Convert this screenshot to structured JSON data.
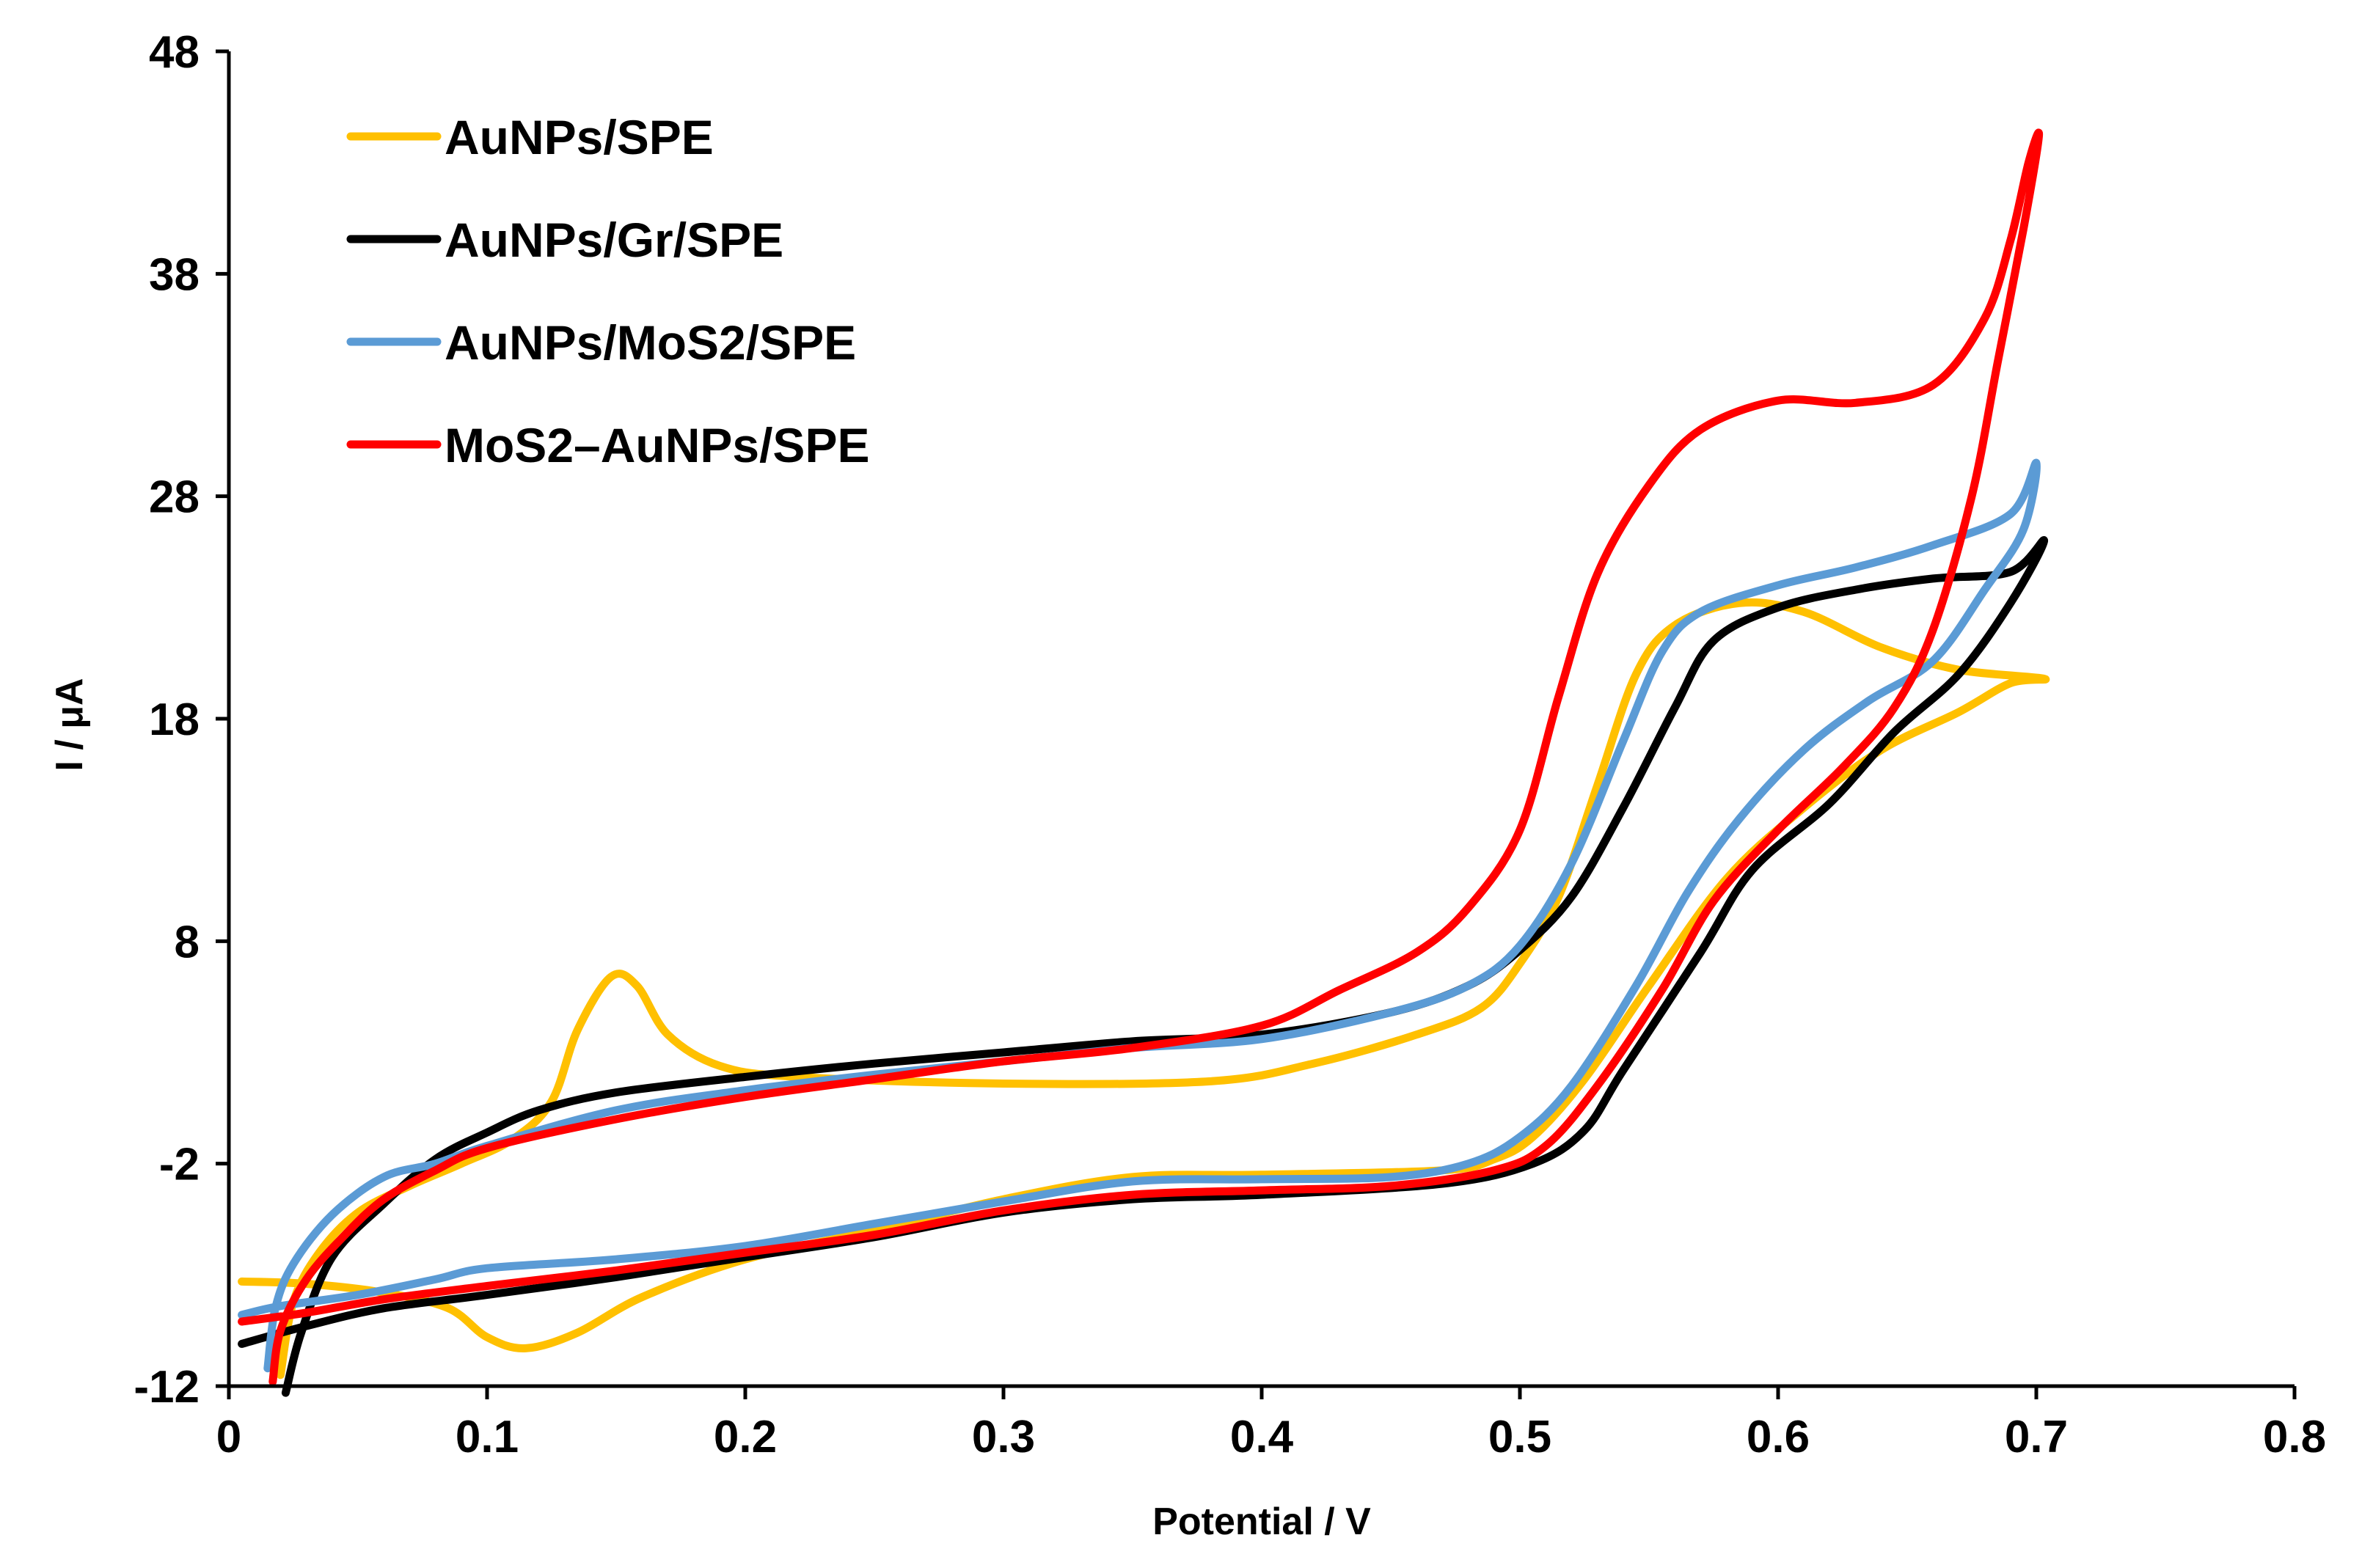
{
  "chart_data": {
    "type": "line",
    "title": "",
    "xlabel": "Potential / V",
    "ylabel": "I / μA",
    "xlim": [
      0,
      0.8
    ],
    "ylim": [
      -12,
      48
    ],
    "x_ticks": [
      0,
      0.1,
      0.2,
      0.3,
      0.4,
      0.5,
      0.6,
      0.7,
      0.8
    ],
    "x_tick_labels": [
      "0",
      "0.1",
      "0.2",
      "0.3",
      "0.4",
      "0.5",
      "0.6",
      "0.7",
      "0.8"
    ],
    "y_ticks": [
      -12,
      -2,
      8,
      18,
      28,
      38,
      48
    ],
    "y_tick_labels": [
      "-12",
      "-2",
      "8",
      "18",
      "28",
      "38",
      "48"
    ],
    "legend_position": "top-left",
    "series": [
      {
        "name": "AuNPs/SPE",
        "color": "#FFC000",
        "points": [
          [
            0.02,
            -11.5
          ],
          [
            0.025,
            -8.2
          ],
          [
            0.035,
            -6
          ],
          [
            0.05,
            -4.2
          ],
          [
            0.07,
            -3
          ],
          [
            0.09,
            -2
          ],
          [
            0.11,
            -0.9
          ],
          [
            0.125,
            0.8
          ],
          [
            0.135,
            4
          ],
          [
            0.148,
            6.4
          ],
          [
            0.158,
            6
          ],
          [
            0.17,
            3.8
          ],
          [
            0.19,
            2.4
          ],
          [
            0.22,
            1.9
          ],
          [
            0.3,
            1.6
          ],
          [
            0.38,
            1.7
          ],
          [
            0.42,
            2.5
          ],
          [
            0.46,
            3.8
          ],
          [
            0.485,
            5
          ],
          [
            0.5,
            7
          ],
          [
            0.515,
            10
          ],
          [
            0.53,
            15
          ],
          [
            0.545,
            20
          ],
          [
            0.56,
            22.2
          ],
          [
            0.585,
            23.2
          ],
          [
            0.61,
            22.8
          ],
          [
            0.64,
            21.2
          ],
          [
            0.67,
            20.2
          ],
          [
            0.703,
            19.8
          ],
          [
            0.69,
            19.6
          ],
          [
            0.67,
            18.3
          ],
          [
            0.64,
            16.6
          ],
          [
            0.61,
            14
          ],
          [
            0.58,
            10.8
          ],
          [
            0.55,
            6
          ],
          [
            0.525,
            1.8
          ],
          [
            0.505,
            -0.8
          ],
          [
            0.49,
            -1.8
          ],
          [
            0.47,
            -2.3
          ],
          [
            0.4,
            -2.5
          ],
          [
            0.35,
            -2.6
          ],
          [
            0.3,
            -3.6
          ],
          [
            0.25,
            -5
          ],
          [
            0.2,
            -6.3
          ],
          [
            0.16,
            -8
          ],
          [
            0.135,
            -9.6
          ],
          [
            0.115,
            -10.3
          ],
          [
            0.1,
            -9.8
          ],
          [
            0.085,
            -8.5
          ],
          [
            0.06,
            -7.8
          ],
          [
            0.03,
            -7.4
          ],
          [
            0.005,
            -7.3
          ]
        ]
      },
      {
        "name": "AuNPs/Gr/SPE",
        "color": "#000000",
        "points": [
          [
            0.022,
            -12.3
          ],
          [
            0.028,
            -9.6
          ],
          [
            0.04,
            -6.2
          ],
          [
            0.06,
            -3.8
          ],
          [
            0.08,
            -1.8
          ],
          [
            0.1,
            -0.6
          ],
          [
            0.12,
            0.4
          ],
          [
            0.15,
            1.2
          ],
          [
            0.2,
            1.9
          ],
          [
            0.25,
            2.5
          ],
          [
            0.3,
            3
          ],
          [
            0.35,
            3.5
          ],
          [
            0.4,
            3.8
          ],
          [
            0.45,
            4.8
          ],
          [
            0.48,
            6
          ],
          [
            0.5,
            7.6
          ],
          [
            0.52,
            10
          ],
          [
            0.54,
            14
          ],
          [
            0.56,
            18.5
          ],
          [
            0.575,
            21.5
          ],
          [
            0.6,
            23
          ],
          [
            0.63,
            23.8
          ],
          [
            0.66,
            24.3
          ],
          [
            0.69,
            24.6
          ],
          [
            0.703,
            26
          ],
          [
            0.69,
            23.2
          ],
          [
            0.67,
            20
          ],
          [
            0.645,
            17.4
          ],
          [
            0.62,
            14.2
          ],
          [
            0.59,
            11.2
          ],
          [
            0.57,
            7.5
          ],
          [
            0.54,
            2.2
          ],
          [
            0.525,
            -0.5
          ],
          [
            0.505,
            -2
          ],
          [
            0.47,
            -2.9
          ],
          [
            0.4,
            -3.4
          ],
          [
            0.35,
            -3.6
          ],
          [
            0.3,
            -4.2
          ],
          [
            0.25,
            -5.3
          ],
          [
            0.2,
            -6.2
          ],
          [
            0.15,
            -7.1
          ],
          [
            0.1,
            -7.9
          ],
          [
            0.06,
            -8.5
          ],
          [
            0.03,
            -9.3
          ],
          [
            0.005,
            -10.1
          ]
        ]
      },
      {
        "name": "AuNPs/MoS2/SPE",
        "color": "#5B9BD5",
        "points": [
          [
            0.015,
            -11.2
          ],
          [
            0.018,
            -8.5
          ],
          [
            0.025,
            -6.5
          ],
          [
            0.04,
            -4.3
          ],
          [
            0.06,
            -2.6
          ],
          [
            0.08,
            -2
          ],
          [
            0.1,
            -1.2
          ],
          [
            0.15,
            0.4
          ],
          [
            0.2,
            1.3
          ],
          [
            0.25,
            2
          ],
          [
            0.3,
            2.6
          ],
          [
            0.35,
            3.2
          ],
          [
            0.4,
            3.6
          ],
          [
            0.45,
            4.8
          ],
          [
            0.48,
            6
          ],
          [
            0.5,
            7.8
          ],
          [
            0.52,
            11.5
          ],
          [
            0.54,
            17
          ],
          [
            0.555,
            21
          ],
          [
            0.57,
            22.8
          ],
          [
            0.6,
            24
          ],
          [
            0.63,
            24.8
          ],
          [
            0.66,
            25.8
          ],
          [
            0.69,
            27.2
          ],
          [
            0.7,
            29.5
          ],
          [
            0.695,
            26.5
          ],
          [
            0.68,
            23.8
          ],
          [
            0.66,
            20.6
          ],
          [
            0.635,
            18.8
          ],
          [
            0.61,
            16.6
          ],
          [
            0.585,
            13.5
          ],
          [
            0.565,
            10.2
          ],
          [
            0.545,
            6
          ],
          [
            0.52,
            1.5
          ],
          [
            0.5,
            -0.8
          ],
          [
            0.48,
            -2
          ],
          [
            0.45,
            -2.6
          ],
          [
            0.4,
            -2.7
          ],
          [
            0.35,
            -2.8
          ],
          [
            0.3,
            -3.7
          ],
          [
            0.25,
            -4.7
          ],
          [
            0.2,
            -5.7
          ],
          [
            0.15,
            -6.3
          ],
          [
            0.1,
            -6.7
          ],
          [
            0.08,
            -7.2
          ],
          [
            0.05,
            -7.9
          ],
          [
            0.02,
            -8.4
          ],
          [
            0.005,
            -8.8
          ]
        ]
      },
      {
        "name": "MoS2–AuNPs/SPE",
        "color": "#FF0000",
        "points": [
          [
            0.017,
            -11.8
          ],
          [
            0.02,
            -9.5
          ],
          [
            0.03,
            -7.2
          ],
          [
            0.045,
            -5.2
          ],
          [
            0.06,
            -3.6
          ],
          [
            0.08,
            -2.3
          ],
          [
            0.1,
            -1.3
          ],
          [
            0.15,
            0
          ],
          [
            0.2,
            1
          ],
          [
            0.25,
            1.8
          ],
          [
            0.3,
            2.6
          ],
          [
            0.35,
            3.2
          ],
          [
            0.4,
            4.2
          ],
          [
            0.43,
            5.8
          ],
          [
            0.46,
            7.5
          ],
          [
            0.48,
            9.5
          ],
          [
            0.5,
            13
          ],
          [
            0.515,
            19
          ],
          [
            0.53,
            24.5
          ],
          [
            0.55,
            28.5
          ],
          [
            0.57,
            31
          ],
          [
            0.6,
            32.3
          ],
          [
            0.63,
            32.2
          ],
          [
            0.66,
            33
          ],
          [
            0.68,
            36
          ],
          [
            0.69,
            39.5
          ],
          [
            0.697,
            43
          ],
          [
            0.701,
            44.2
          ],
          [
            0.695,
            40
          ],
          [
            0.685,
            34
          ],
          [
            0.675,
            28
          ],
          [
            0.66,
            22
          ],
          [
            0.645,
            18.5
          ],
          [
            0.625,
            15.8
          ],
          [
            0.6,
            13
          ],
          [
            0.575,
            9.8
          ],
          [
            0.555,
            5.8
          ],
          [
            0.53,
            1.5
          ],
          [
            0.51,
            -1.2
          ],
          [
            0.49,
            -2.3
          ],
          [
            0.45,
            -3
          ],
          [
            0.4,
            -3.2
          ],
          [
            0.35,
            -3.4
          ],
          [
            0.3,
            -4.1
          ],
          [
            0.25,
            -5.2
          ],
          [
            0.2,
            -6
          ],
          [
            0.15,
            -6.8
          ],
          [
            0.1,
            -7.5
          ],
          [
            0.06,
            -8.1
          ],
          [
            0.03,
            -8.7
          ],
          [
            0.005,
            -9.1
          ]
        ]
      }
    ]
  }
}
